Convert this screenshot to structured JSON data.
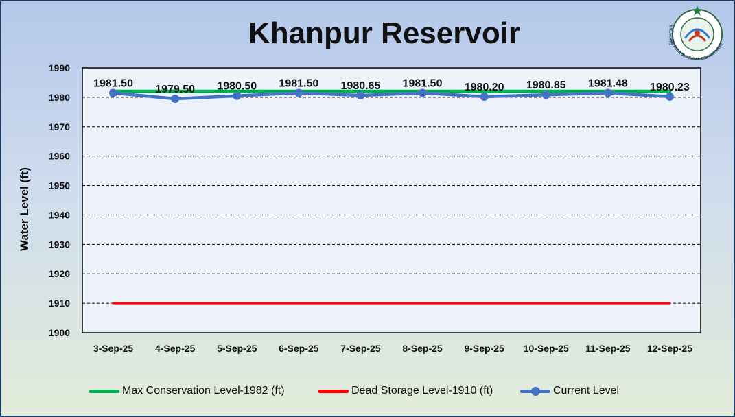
{
  "chart_data": {
    "type": "line",
    "title": "Khanpur Reservoir",
    "ylabel": "Water Level (ft)",
    "xlabel": "",
    "ylim": [
      1900,
      1990
    ],
    "yticks": [
      1990,
      1980,
      1970,
      1960,
      1950,
      1940,
      1930,
      1920,
      1910,
      1900
    ],
    "categories": [
      "3-Sep-25",
      "4-Sep-25",
      "5-Sep-25",
      "6-Sep-25",
      "7-Sep-25",
      "8-Sep-25",
      "9-Sep-25",
      "10-Sep-25",
      "11-Sep-25",
      "12-Sep-25"
    ],
    "grid": true,
    "legend_position": "bottom",
    "series": [
      {
        "name": "Max Conservation Level-1982 (ft)",
        "color": "#00b050",
        "values": [
          1982,
          1982,
          1982,
          1982,
          1982,
          1982,
          1982,
          1982,
          1982,
          1982
        ],
        "markers": false
      },
      {
        "name": "Dead Storage Level-1910 (ft)",
        "color": "#ff0000",
        "values": [
          1910,
          1910,
          1910,
          1910,
          1910,
          1910,
          1910,
          1910,
          1910,
          1910
        ],
        "markers": false
      },
      {
        "name": "Current Level",
        "color": "#4472c4",
        "values": [
          1981.5,
          1979.5,
          1980.5,
          1981.5,
          1980.65,
          1981.5,
          1980.2,
          1980.85,
          1981.48,
          1980.23
        ],
        "markers": true
      }
    ],
    "data_labels": [
      "1981.50",
      "1979.50",
      "1980.50",
      "1981.50",
      "1980.65",
      "1981.50",
      "1980.20",
      "1980.85",
      "1981.48",
      "1980.23"
    ]
  },
  "logo": {
    "top_text": "PAKISTAN",
    "bottom_text": "METEOROLOGICAL DEPARTMENT"
  }
}
